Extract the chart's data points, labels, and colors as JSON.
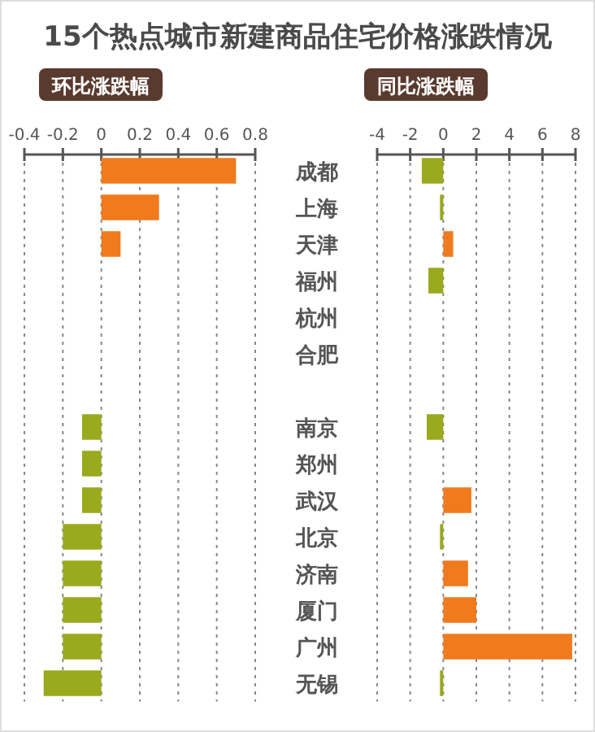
{
  "chart_data": [
    {
      "type": "bar",
      "orientation": "horizontal",
      "title": "15个热点城市新建商品住宅价格涨跌情况",
      "subtitle": "环比涨跌幅",
      "categories": [
        "成都",
        "上海",
        "天津",
        "福州",
        "杭州",
        "合肥",
        null,
        "南京",
        "郑州",
        "武汉",
        "北京",
        "济南",
        "厦门",
        "广州",
        "无锡"
      ],
      "values": [
        0.7,
        0.3,
        0.1,
        0,
        null,
        null,
        null,
        -0.1,
        -0.1,
        -0.1,
        -0.2,
        -0.2,
        -0.2,
        -0.2,
        -0.3
      ],
      "colors": [
        "#f07a1e",
        "#f07a1e",
        "#f07a1e",
        "#9aaa1e",
        null,
        null,
        null,
        "#9aaa1e",
        "#9aaa1e",
        "#9aaa1e",
        "#9aaa1e",
        "#9aaa1e",
        "#9aaa1e",
        "#9aaa1e",
        "#9aaa1e"
      ],
      "xlim": [
        -0.4,
        0.8
      ],
      "xticks": [
        -0.4,
        -0.2,
        0,
        0.2,
        0.4,
        0.6,
        0.8
      ],
      "grid": "x"
    },
    {
      "type": "bar",
      "orientation": "horizontal",
      "subtitle": "同比涨跌幅",
      "categories": [
        null,
        null,
        null,
        null,
        null,
        null,
        null,
        null,
        null,
        null,
        null,
        null,
        null,
        null,
        null
      ],
      "values": [
        -1.3,
        -0.2,
        0.6,
        -0.9,
        null,
        null,
        null,
        -1.0,
        0,
        1.7,
        -0.2,
        1.5,
        2.0,
        7.8,
        -0.2
      ],
      "colors": [
        "#9aaa1e",
        "#9aaa1e",
        "#f07a1e",
        "#9aaa1e",
        null,
        null,
        null,
        "#9aaa1e",
        "#9aaa1e",
        "#f07a1e",
        "#9aaa1e",
        "#f07a1e",
        "#f07a1e",
        "#f07a1e",
        "#9aaa1e"
      ],
      "xlim": [
        -4,
        8
      ],
      "xticks": [
        -4,
        -2,
        0,
        2,
        4,
        6,
        8
      ],
      "grid": "x"
    }
  ]
}
